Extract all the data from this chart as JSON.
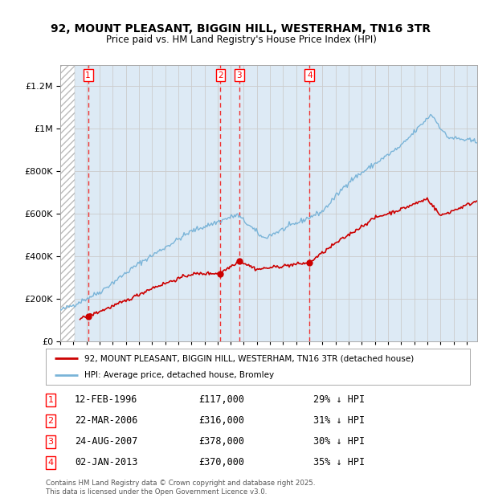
{
  "title": "92, MOUNT PLEASANT, BIGGIN HILL, WESTERHAM, TN16 3TR",
  "subtitle": "Price paid vs. HM Land Registry's House Price Index (HPI)",
  "transactions": [
    {
      "num": "1",
      "date": "12-FEB-1996",
      "year": 1996.12,
      "price": 117000,
      "pct": "29% ↓ HPI"
    },
    {
      "num": "2",
      "date": "22-MAR-2006",
      "year": 2006.22,
      "price": 316000,
      "pct": "31% ↓ HPI"
    },
    {
      "num": "3",
      "date": "24-AUG-2007",
      "year": 2007.65,
      "price": 378000,
      "pct": "30% ↓ HPI"
    },
    {
      "num": "4",
      "date": "02-JAN-2013",
      "year": 2013.01,
      "price": 370000,
      "pct": "35% ↓ HPI"
    }
  ],
  "hpi_color": "#7ab4d8",
  "price_color": "#cc0000",
  "vline_color": "#ee3333",
  "grid_color": "#cccccc",
  "bg_plot": "#ddeaf5",
  "ylim": [
    0,
    1300000
  ],
  "yticks": [
    0,
    200000,
    400000,
    600000,
    800000,
    1000000,
    1200000
  ],
  "xlim_start": 1994.0,
  "xlim_end": 2025.8,
  "hatch_end": 1995.08,
  "price_start": 1995.5,
  "legend_line1": "92, MOUNT PLEASANT, BIGGIN HILL, WESTERHAM, TN16 3TR (detached house)",
  "legend_line2": "HPI: Average price, detached house, Bromley",
  "footer": "Contains HM Land Registry data © Crown copyright and database right 2025.\nThis data is licensed under the Open Government Licence v3.0.",
  "dates_str": [
    "12-FEB-1996",
    "22-MAR-2006",
    "24-AUG-2007",
    "02-JAN-2013"
  ],
  "prices_str": [
    "£117,000",
    "£316,000",
    "£378,000",
    "£370,000"
  ],
  "pcts_str": [
    "29% ↓ HPI",
    "31% ↓ HPI",
    "30% ↓ HPI",
    "35% ↓ HPI"
  ]
}
